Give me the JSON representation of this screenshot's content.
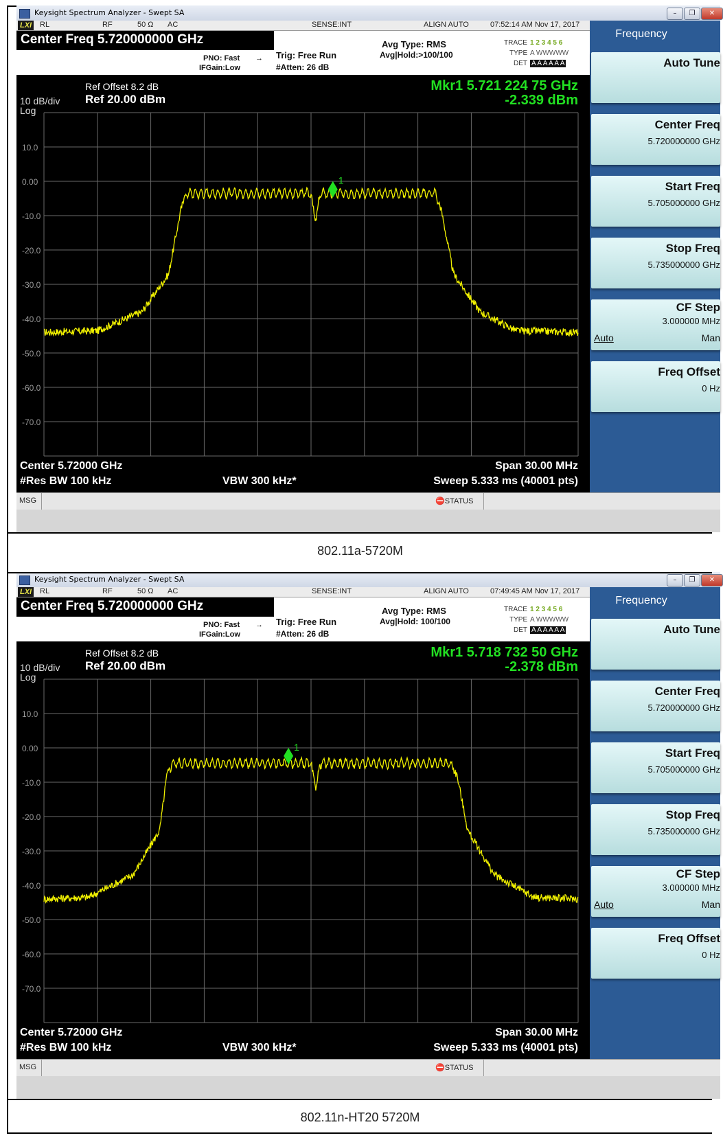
{
  "panels": [
    {
      "window_title": "Keysight Spectrum Analyzer - Swept SA",
      "status_bar": {
        "lxi": "LXI",
        "rl": "RL",
        "rf": "RF",
        "impedance": "50 Ω",
        "coupling": "AC",
        "sense": "SENSE:INT",
        "align": "ALIGN AUTO",
        "datetime": "07:52:14 AM Nov 17, 2017"
      },
      "header": {
        "center_freq": "Center Freq 5.720000000 GHz",
        "pno": "PNO: Fast",
        "ifgain": "IFGain:Low",
        "trig": "Trig: Free Run",
        "atten": "#Atten: 26 dB",
        "avg_type": "Avg Type: RMS",
        "avg_hold": "Avg|Hold:>100/100",
        "trace_label": "TRACE",
        "type_label": "TYPE",
        "det_label": "DET",
        "trace_nums": "1 2 3 4 5 6",
        "type_vals": "A WWWWW",
        "det_vals": "A A A A A A"
      },
      "screen": {
        "ref_offset": "Ref Offset 8.2 dB",
        "ref_level": "Ref 20.00 dBm",
        "scale": "10 dB/div",
        "scale_type": "Log",
        "marker_freq": "Mkr1 5.721 224 75 GHz",
        "marker_level": "-2.339 dBm",
        "marker_label": "1",
        "center": "Center 5.72000 GHz",
        "res_bw": "#Res BW 100 kHz",
        "vbw": "VBW 300 kHz*",
        "span": "Span 30.00 MHz",
        "sweep": "Sweep  5.333 ms (40001 pts)"
      },
      "msg": "MSG",
      "status_btn": "STATUS",
      "softkey_title": "Frequency",
      "softkeys": [
        {
          "label": "Auto Tune",
          "value": ""
        },
        {
          "label": "Center Freq",
          "value": "5.720000000 GHz"
        },
        {
          "label": "Start Freq",
          "value": "5.705000000 GHz"
        },
        {
          "label": "Stop Freq",
          "value": "5.735000000 GHz"
        },
        {
          "label": "CF Step",
          "value": "3.000000 MHz",
          "auto": "Auto",
          "man": "Man"
        },
        {
          "label": "Freq Offset",
          "value": "0 Hz"
        }
      ],
      "caption": "802.11a-5720M",
      "chart_data": {
        "type": "line",
        "ylabel_ticks": [
          "10.0",
          "0.00",
          "-10.0",
          "-20.0",
          "-30.0",
          "-40.0",
          "-50.0",
          "-60.0",
          "-70.0"
        ],
        "ylim": [
          -80,
          20
        ],
        "xlim_mhz": [
          5705,
          5735
        ],
        "grid": true,
        "series": [
          {
            "color": "#f0f000",
            "points": [
              [
                5705,
                -44
              ],
              [
                5708,
                -43.5
              ],
              [
                5710.5,
                -38
              ],
              [
                5712,
                -27
              ],
              [
                5712.7,
                -8
              ],
              [
                5713,
                -3.5
              ],
              [
                5720,
                -3.5
              ],
              [
                5720.25,
                -12.5
              ],
              [
                5720.5,
                -3.5
              ],
              [
                5727,
                -3.5
              ],
              [
                5727.3,
                -8
              ],
              [
                5728,
                -27
              ],
              [
                5729.5,
                -38
              ],
              [
                5731.5,
                -43.5
              ],
              [
                5735,
                -44
              ]
            ]
          }
        ],
        "marker": {
          "x_mhz": 5721.22475,
          "y_dbm": -2.339,
          "label": "1"
        }
      }
    },
    {
      "window_title": "Keysight Spectrum Analyzer - Swept SA",
      "status_bar": {
        "lxi": "LXI",
        "rl": "RL",
        "rf": "RF",
        "impedance": "50 Ω",
        "coupling": "AC",
        "sense": "SENSE:INT",
        "align": "ALIGN AUTO",
        "datetime": "07:49:45 AM Nov 17, 2017"
      },
      "header": {
        "center_freq": "Center Freq 5.720000000 GHz",
        "pno": "PNO: Fast",
        "ifgain": "IFGain:Low",
        "trig": "Trig: Free Run",
        "atten": "#Atten: 26 dB",
        "avg_type": "Avg Type: RMS",
        "avg_hold": "Avg|Hold: 100/100",
        "trace_label": "TRACE",
        "type_label": "TYPE",
        "det_label": "DET",
        "trace_nums": "1 2 3 4 5 6",
        "type_vals": "A WWWWW",
        "det_vals": "A A A A A A"
      },
      "screen": {
        "ref_offset": "Ref Offset 8.2 dB",
        "ref_level": "Ref 20.00 dBm",
        "scale": "10 dB/div",
        "scale_type": "Log",
        "marker_freq": "Mkr1 5.718 732 50 GHz",
        "marker_level": "-2.378 dBm",
        "marker_label": "1",
        "center": "Center 5.72000 GHz",
        "res_bw": "#Res BW 100 kHz",
        "vbw": "VBW 300 kHz*",
        "span": "Span 30.00 MHz",
        "sweep": "Sweep  5.333 ms (40001 pts)"
      },
      "msg": "MSG",
      "status_btn": "STATUS",
      "softkey_title": "Frequency",
      "softkeys": [
        {
          "label": "Auto Tune",
          "value": ""
        },
        {
          "label": "Center Freq",
          "value": "5.720000000 GHz"
        },
        {
          "label": "Start Freq",
          "value": "5.705000000 GHz"
        },
        {
          "label": "Stop Freq",
          "value": "5.735000000 GHz"
        },
        {
          "label": "CF Step",
          "value": "3.000000 MHz",
          "auto": "Auto",
          "man": "Man"
        },
        {
          "label": "Freq Offset",
          "value": "0 Hz"
        }
      ],
      "caption": "802.11n-HT20 5720M",
      "chart_data": {
        "type": "line",
        "ylabel_ticks": [
          "10.0",
          "0.00",
          "-10.0",
          "-20.0",
          "-30.0",
          "-40.0",
          "-50.0",
          "-60.0",
          "-70.0"
        ],
        "ylim": [
          -80,
          20
        ],
        "xlim_mhz": [
          5705,
          5735
        ],
        "grid": true,
        "series": [
          {
            "color": "#f0f000",
            "points": [
              [
                5705,
                -44
              ],
              [
                5707.5,
                -43.5
              ],
              [
                5710,
                -37
              ],
              [
                5711.5,
                -24
              ],
              [
                5711.9,
                -8
              ],
              [
                5712.2,
                -4.5
              ],
              [
                5720,
                -4.5
              ],
              [
                5720.25,
                -12
              ],
              [
                5720.5,
                -4.5
              ],
              [
                5727.8,
                -4.5
              ],
              [
                5728.2,
                -8
              ],
              [
                5728.8,
                -24
              ],
              [
                5730.3,
                -37
              ],
              [
                5732.5,
                -43.5
              ],
              [
                5735,
                -44
              ]
            ]
          }
        ],
        "marker": {
          "x_mhz": 5718.7325,
          "y_dbm": -2.378,
          "label": "1"
        }
      }
    }
  ]
}
